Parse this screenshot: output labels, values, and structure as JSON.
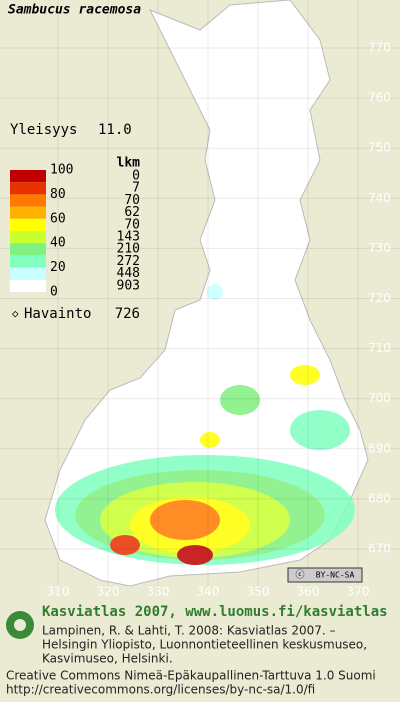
{
  "title": "Sambucus racemosa",
  "frequency": {
    "label": "Yleisyys",
    "value": "11.0"
  },
  "legend": {
    "count_header": "lkm",
    "scale_labels": [
      "100",
      "80",
      "60",
      "40",
      "20",
      "0"
    ],
    "counts": [
      "0",
      "7",
      "70",
      "62",
      "70",
      "143",
      "210",
      "272",
      "448",
      "903"
    ],
    "colors": [
      "#c00000",
      "#e83000",
      "#ff7800",
      "#ffb000",
      "#ffff00",
      "#c8ff30",
      "#80f080",
      "#80ffc0",
      "#c8ffff",
      "#ffffff"
    ],
    "observation_label": "Havainto",
    "observation_count": "726"
  },
  "map": {
    "yticks": [
      770,
      760,
      750,
      740,
      730,
      720,
      710,
      700,
      690,
      680,
      670
    ],
    "xticks": [
      310,
      320,
      330,
      340,
      350,
      360,
      370
    ],
    "license_badge": "BY-NC-SA"
  },
  "footer": {
    "heading": "Kasviatlas 2007, www.luomus.fi/kasviatlas",
    "citation": [
      "Lampinen, R. & Lahti, T. 2008: Kasviatlas 2007. –",
      "Helsingin Yliopisto, Luonnontieteellinen keskusmuseo,",
      "Kasvimuseo, Helsinki."
    ],
    "license": [
      "Creative Commons Nimeä-Epäkaupallinen-Tarttuva 1.0 Suomi",
      "http://creativecommons.org/licenses/by-nc-sa/1.0/fi"
    ]
  }
}
